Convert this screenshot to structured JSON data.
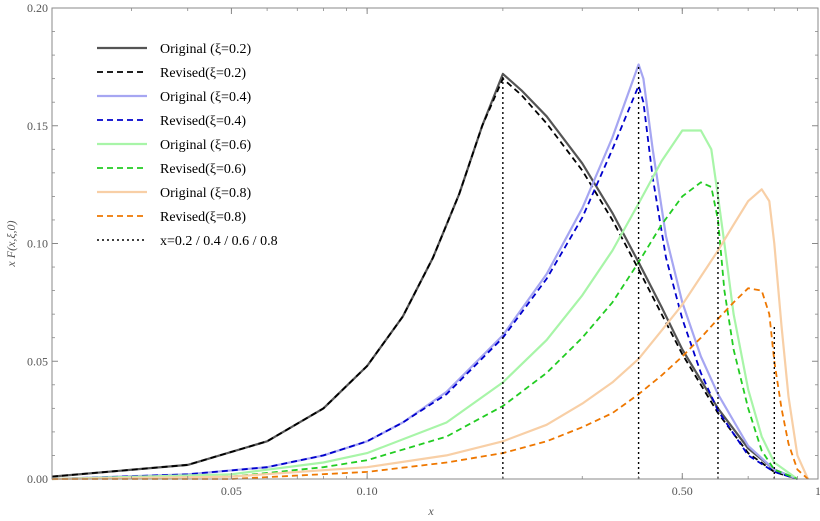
{
  "chart_data": {
    "type": "line",
    "xlabel": "x",
    "ylabel": "x F(x,ξ,0)",
    "x_scale": "log",
    "xlim": [
      0.02,
      1.0
    ],
    "ylim": [
      0.0,
      0.2
    ],
    "x_ticks": [
      {
        "value": 0.05,
        "label": "0.05"
      },
      {
        "value": 0.1,
        "label": "0.10"
      },
      {
        "value": 0.5,
        "label": "0.50"
      },
      {
        "value": 1.0,
        "label": "1"
      }
    ],
    "y_ticks": [
      {
        "value": 0.0,
        "label": "0.00"
      },
      {
        "value": 0.05,
        "label": "0.05"
      },
      {
        "value": 0.1,
        "label": "0.10"
      },
      {
        "value": 0.15,
        "label": "0.15"
      },
      {
        "value": 0.2,
        "label": "0.20"
      }
    ],
    "legend_position": "top-left",
    "series": [
      {
        "name": "Original (ξ=0.2)",
        "color": "#555555",
        "style": "solid",
        "width": 2.2,
        "x": [
          0.02,
          0.04,
          0.06,
          0.08,
          0.1,
          0.12,
          0.14,
          0.16,
          0.18,
          0.2,
          0.22,
          0.25,
          0.3,
          0.35,
          0.4,
          0.45,
          0.5,
          0.6,
          0.7,
          0.8,
          0.9
        ],
        "y": [
          0.001,
          0.006,
          0.016,
          0.03,
          0.048,
          0.069,
          0.094,
          0.121,
          0.15,
          0.172,
          0.165,
          0.154,
          0.134,
          0.113,
          0.092,
          0.073,
          0.055,
          0.03,
          0.013,
          0.004,
          0.0
        ]
      },
      {
        "name": "Revised(ξ=0.2)",
        "color": "#000000",
        "style": "dashed",
        "width": 1.8,
        "x": [
          0.02,
          0.04,
          0.06,
          0.08,
          0.1,
          0.12,
          0.14,
          0.16,
          0.18,
          0.2,
          0.22,
          0.25,
          0.3,
          0.35,
          0.4,
          0.45,
          0.5,
          0.6,
          0.7,
          0.8,
          0.9
        ],
        "y": [
          0.001,
          0.006,
          0.016,
          0.03,
          0.048,
          0.069,
          0.094,
          0.121,
          0.15,
          0.17,
          0.163,
          0.151,
          0.131,
          0.11,
          0.089,
          0.07,
          0.053,
          0.028,
          0.011,
          0.003,
          0.0
        ]
      },
      {
        "name": "Original (ξ=0.4)",
        "color": "#a6a6f2",
        "style": "solid",
        "width": 2.2,
        "x": [
          0.02,
          0.04,
          0.06,
          0.08,
          0.1,
          0.12,
          0.15,
          0.2,
          0.25,
          0.3,
          0.35,
          0.4,
          0.41,
          0.43,
          0.46,
          0.5,
          0.55,
          0.6,
          0.7,
          0.8,
          0.9
        ],
        "y": [
          0.0,
          0.002,
          0.005,
          0.01,
          0.016,
          0.024,
          0.037,
          0.061,
          0.087,
          0.115,
          0.145,
          0.176,
          0.17,
          0.14,
          0.103,
          0.075,
          0.052,
          0.036,
          0.014,
          0.004,
          0.0
        ]
      },
      {
        "name": "Revised(ξ=0.4)",
        "color": "#0000cc",
        "style": "dashed",
        "width": 1.8,
        "x": [
          0.02,
          0.04,
          0.06,
          0.08,
          0.1,
          0.12,
          0.15,
          0.2,
          0.25,
          0.3,
          0.35,
          0.4,
          0.41,
          0.43,
          0.46,
          0.5,
          0.55,
          0.6,
          0.7,
          0.8,
          0.9
        ],
        "y": [
          0.0,
          0.002,
          0.005,
          0.01,
          0.016,
          0.024,
          0.036,
          0.06,
          0.085,
          0.111,
          0.14,
          0.167,
          0.16,
          0.128,
          0.094,
          0.068,
          0.045,
          0.029,
          0.01,
          0.003,
          0.0
        ]
      },
      {
        "name": "Original (ξ=0.6)",
        "color": "#a8f5a8",
        "style": "solid",
        "width": 2.2,
        "x": [
          0.02,
          0.05,
          0.08,
          0.1,
          0.15,
          0.2,
          0.25,
          0.3,
          0.35,
          0.4,
          0.45,
          0.5,
          0.55,
          0.58,
          0.6,
          0.62,
          0.65,
          0.7,
          0.75,
          0.8,
          0.9
        ],
        "y": [
          0.0,
          0.002,
          0.007,
          0.011,
          0.024,
          0.041,
          0.059,
          0.078,
          0.097,
          0.117,
          0.135,
          0.148,
          0.148,
          0.14,
          0.12,
          0.1,
          0.07,
          0.038,
          0.018,
          0.007,
          0.0
        ]
      },
      {
        "name": "Revised(ξ=0.6)",
        "color": "#22cc22",
        "style": "dashed",
        "width": 1.8,
        "x": [
          0.02,
          0.05,
          0.08,
          0.1,
          0.15,
          0.2,
          0.25,
          0.3,
          0.35,
          0.4,
          0.45,
          0.5,
          0.55,
          0.58,
          0.6,
          0.62,
          0.65,
          0.7,
          0.75,
          0.8,
          0.9
        ],
        "y": [
          0.0,
          0.001,
          0.005,
          0.008,
          0.018,
          0.031,
          0.045,
          0.06,
          0.075,
          0.092,
          0.108,
          0.12,
          0.126,
          0.124,
          0.11,
          0.08,
          0.055,
          0.03,
          0.012,
          0.004,
          0.0
        ]
      },
      {
        "name": "Original (ξ=0.8)",
        "color": "#f8cfa6",
        "style": "solid",
        "width": 2.2,
        "x": [
          0.02,
          0.05,
          0.1,
          0.15,
          0.2,
          0.25,
          0.3,
          0.35,
          0.4,
          0.45,
          0.5,
          0.55,
          0.6,
          0.65,
          0.7,
          0.75,
          0.78,
          0.8,
          0.83,
          0.86,
          0.9,
          0.95
        ],
        "y": [
          0.0,
          0.001,
          0.005,
          0.01,
          0.016,
          0.023,
          0.032,
          0.041,
          0.051,
          0.063,
          0.074,
          0.086,
          0.097,
          0.108,
          0.118,
          0.123,
          0.118,
          0.1,
          0.065,
          0.035,
          0.01,
          0.0
        ]
      },
      {
        "name": "Revised(ξ=0.8)",
        "color": "#ee7700",
        "style": "dashed",
        "width": 1.8,
        "x": [
          0.02,
          0.05,
          0.1,
          0.15,
          0.2,
          0.25,
          0.3,
          0.35,
          0.4,
          0.45,
          0.5,
          0.55,
          0.6,
          0.65,
          0.7,
          0.75,
          0.78,
          0.8,
          0.83,
          0.86,
          0.9,
          0.95
        ],
        "y": [
          0.0,
          0.0,
          0.003,
          0.007,
          0.011,
          0.016,
          0.022,
          0.028,
          0.036,
          0.044,
          0.052,
          0.06,
          0.068,
          0.075,
          0.081,
          0.08,
          0.07,
          0.05,
          0.03,
          0.015,
          0.004,
          0.0
        ]
      }
    ],
    "vertical_lines": {
      "name": "x=0.2 / 0.4 / 0.6 / 0.8",
      "color": "#000000",
      "style": "dotted",
      "lines": [
        {
          "x": 0.2,
          "y_top": 0.171
        },
        {
          "x": 0.4,
          "y_top": 0.175
        },
        {
          "x": 0.6,
          "y_top": 0.126
        },
        {
          "x": 0.8,
          "y_top": 0.065
        }
      ]
    }
  }
}
